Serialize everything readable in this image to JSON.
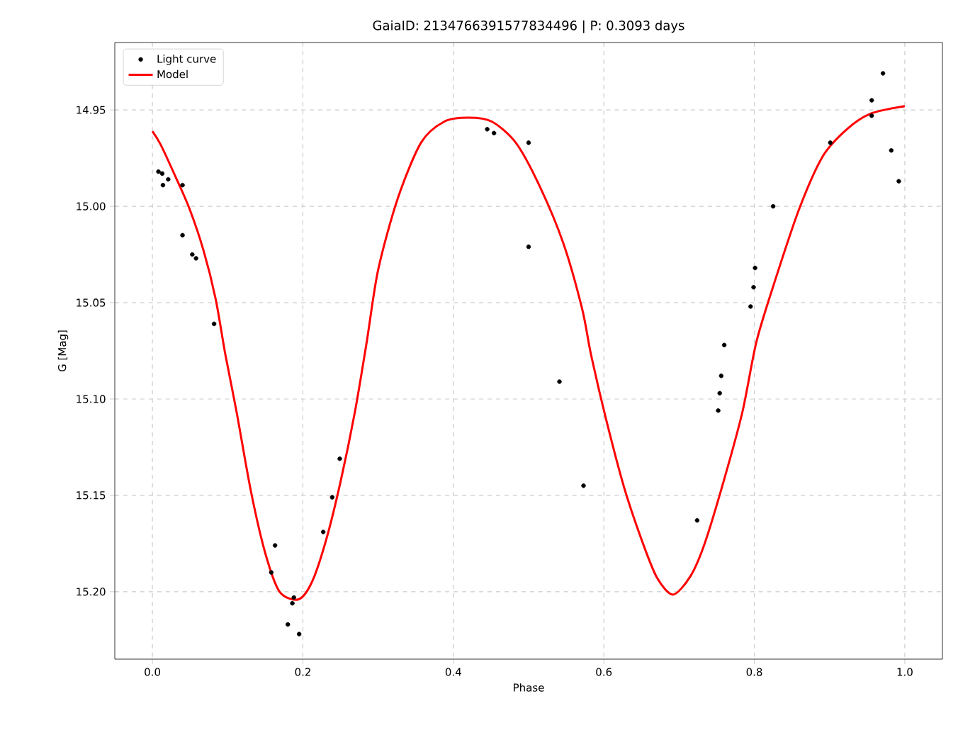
{
  "chart_data": {
    "type": "scatter",
    "title": "GaiaID: 2134766391577834496 | P: 0.3093 days",
    "xlabel": "Phase",
    "ylabel": "G [Mag]",
    "xlim": [
      -0.05,
      1.05
    ],
    "ylim": [
      15.235,
      14.915
    ],
    "xticks": [
      {
        "value": 0,
        "label": "0.0"
      },
      {
        "value": 0.2,
        "label": "0.2"
      },
      {
        "value": 0.4,
        "label": "0.4"
      },
      {
        "value": 0.6,
        "label": "0.6"
      },
      {
        "value": 0.8,
        "label": "0.8"
      },
      {
        "value": 1,
        "label": "1.0"
      }
    ],
    "yticks": [
      {
        "value": 14.95,
        "label": "14.95"
      },
      {
        "value": 15.0,
        "label": "15.00"
      },
      {
        "value": 15.05,
        "label": "15.05"
      },
      {
        "value": 15.1,
        "label": "15.10"
      },
      {
        "value": 15.15,
        "label": "15.15"
      },
      {
        "value": 15.2,
        "label": "15.20"
      }
    ],
    "grid": true,
    "legend": "top left",
    "series": [
      {
        "name": "Light curve",
        "marker": "circle",
        "color": "#000000",
        "x": [
          0.008,
          0.013,
          0.014,
          0.021,
          0.04,
          0.04,
          0.053,
          0.058,
          0.082,
          0.158,
          0.163,
          0.18,
          0.186,
          0.188,
          0.195,
          0.227,
          0.239,
          0.249,
          0.445,
          0.454,
          0.5,
          0.5,
          0.541,
          0.573,
          0.724,
          0.752,
          0.754,
          0.756,
          0.76,
          0.795,
          0.799,
          0.801,
          0.825,
          0.901,
          0.956,
          0.956,
          0.971,
          0.982,
          0.992
        ],
        "values": [
          14.982,
          14.983,
          14.989,
          14.986,
          14.989,
          15.015,
          15.025,
          15.027,
          15.061,
          15.19,
          15.176,
          15.217,
          15.206,
          15.203,
          15.222,
          15.169,
          15.151,
          15.131,
          14.96,
          14.962,
          14.967,
          15.021,
          15.091,
          15.145,
          15.163,
          15.106,
          15.097,
          15.088,
          15.072,
          15.052,
          15.042,
          15.032,
          15.0,
          14.967,
          14.945,
          14.953,
          14.931,
          14.971,
          14.987
        ]
      },
      {
        "name": "Model",
        "type": "line",
        "marker": "none",
        "line_style": "solid",
        "color": "#ff0000",
        "x": [
          0.0,
          0.011,
          0.03,
          0.049,
          0.068,
          0.084,
          0.097,
          0.112,
          0.131,
          0.15,
          0.169,
          0.194,
          0.212,
          0.231,
          0.25,
          0.269,
          0.285,
          0.3,
          0.326,
          0.357,
          0.388,
          0.42,
          0.451,
          0.483,
          0.514,
          0.546,
          0.571,
          0.583,
          0.602,
          0.627,
          0.652,
          0.671,
          0.692,
          0.715,
          0.734,
          0.759,
          0.784,
          0.803,
          0.828,
          0.86,
          0.891,
          0.923,
          0.954,
          1.0
        ],
        "values": [
          14.961,
          14.968,
          14.984,
          15.001,
          15.023,
          15.048,
          15.077,
          15.107,
          15.148,
          15.18,
          15.2,
          15.204,
          15.195,
          15.173,
          15.143,
          15.107,
          15.07,
          15.033,
          14.996,
          14.967,
          14.956,
          14.954,
          14.956,
          14.967,
          14.989,
          15.019,
          15.053,
          15.077,
          15.109,
          15.146,
          15.175,
          15.193,
          15.2015,
          15.192,
          15.175,
          15.143,
          15.107,
          15.07,
          15.038,
          15.001,
          14.974,
          14.96,
          14.952,
          14.948
        ]
      }
    ]
  }
}
